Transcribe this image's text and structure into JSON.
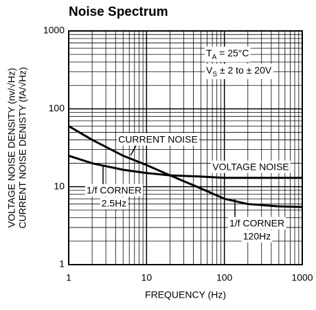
{
  "chart_data": {
    "type": "line",
    "title": "Noise Spectrum",
    "xlabel": "FREQUENCY (Hz)",
    "ylabel": [
      "VOLTAGE NOISE DENSITY (nv/√Hz)",
      "CURRENT NOISE DENISTY (fA/√Hz)"
    ],
    "x": [
      1,
      2,
      5,
      10,
      20,
      50,
      100,
      200,
      500,
      1000
    ],
    "series": [
      {
        "name": "VOLTAGE NOISE",
        "color": "#000000",
        "values": [
          25,
          20,
          16.5,
          15,
          14,
          13.5,
          13,
          13,
          13,
          13
        ]
      },
      {
        "name": "CURRENT NOISE",
        "color": "#000000",
        "values": [
          60,
          40,
          25,
          19,
          14,
          9.5,
          7,
          6,
          5.6,
          5.5
        ]
      }
    ],
    "xlim": [
      1,
      1000
    ],
    "ylim": [
      1,
      1000
    ],
    "xticks": [
      1,
      10,
      100,
      1000
    ],
    "yticks": [
      1,
      10,
      100,
      1000
    ],
    "log_x": true,
    "log_y": true,
    "grid": true,
    "annotations": [
      [
        "T",
        "A",
        " = 25°C"
      ],
      [
        "V",
        "S",
        " ± 2 to  ± 20V"
      ]
    ],
    "corner_labels": [
      [
        "1/f CORNER",
        "2.5Hz"
      ],
      [
        "1/f CORNER",
        "120Hz"
      ]
    ]
  }
}
